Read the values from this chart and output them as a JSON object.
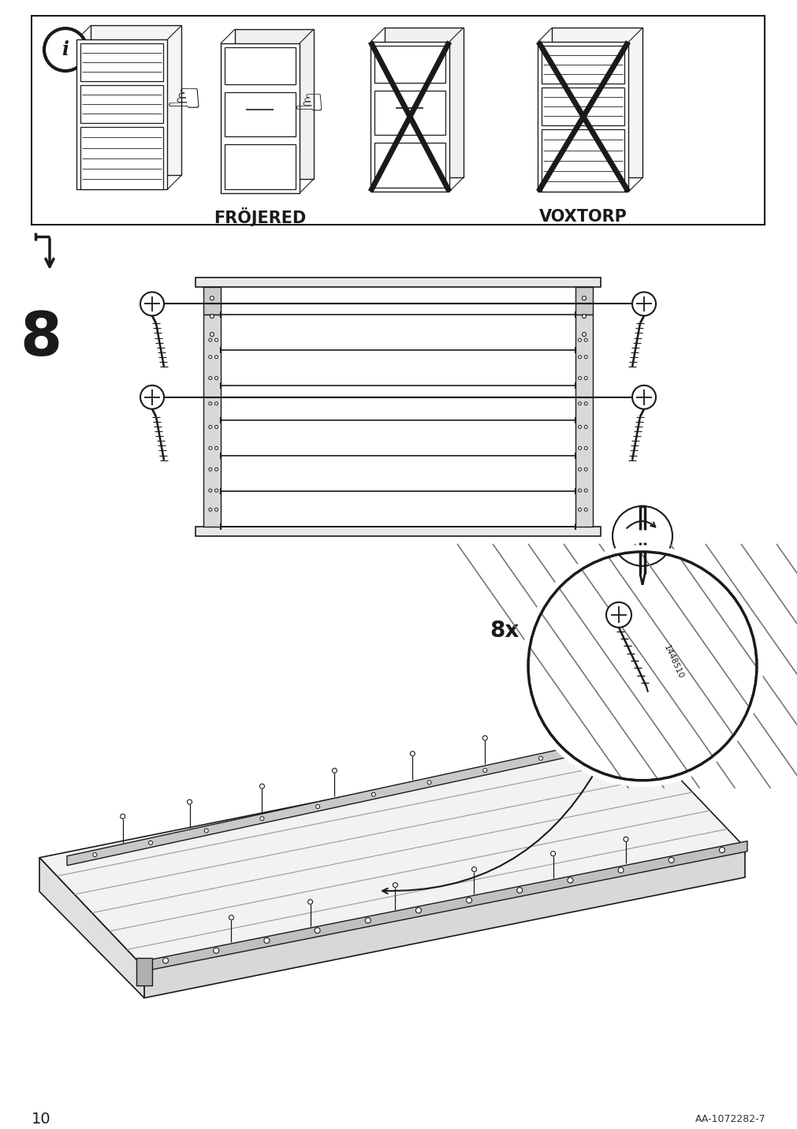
{
  "page_number": "10",
  "article_number": "AA-1072282-7",
  "step_number": "8",
  "bg": "#ffffff",
  "lc": "#1a1a1a",
  "frojered_label": "FRÖJERED",
  "voxtorp_label": "VOXTORP"
}
